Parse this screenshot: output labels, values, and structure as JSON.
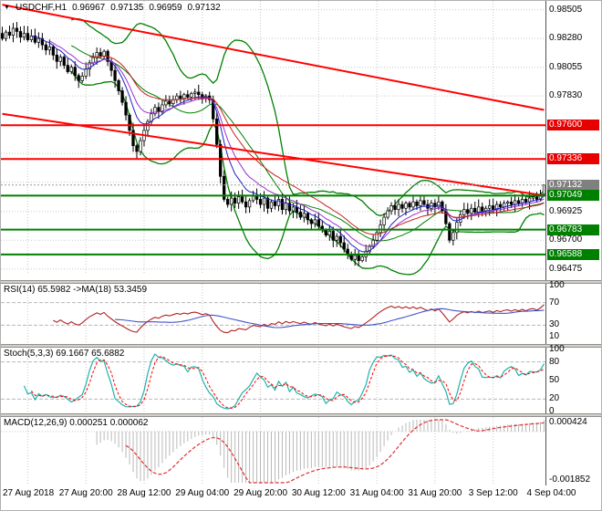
{
  "title_bar": {
    "symbol_period": "USDCHF,H1",
    "open": "0.96967",
    "high": "0.97135",
    "low": "0.96959",
    "close": "0.97132"
  },
  "indicator_labels": {
    "rsi": "RSI(14) 65.5982 ->MA(18) 53.3459",
    "stoch": "Stoch(5,3,3) 69.1667 65.6882",
    "macd": "MACD(12,26,9) 0.000251 0.000062"
  },
  "chart_data": {
    "type": "candlestick",
    "symbol": "USDCHF",
    "timeframe": "H1",
    "ohlc_display": {
      "open": 0.96967,
      "high": 0.97135,
      "low": 0.96959,
      "close": 0.97132
    },
    "x_axis": {
      "labels": [
        "27 Aug 2018",
        "27 Aug 20:00",
        "28 Aug 12:00",
        "29 Aug 04:00",
        "29 Aug 20:00",
        "30 Aug 12:00",
        "31 Aug 04:00",
        "31 Aug 20:00",
        "3 Sep 12:00",
        "4 Sep 04:00"
      ],
      "first_label_bar": 7,
      "bars_per_label": 16
    },
    "y_axis": {
      "min": 0.9643,
      "max": 0.9856,
      "plain_ticks": [
        {
          "t": "0.98505",
          "v": 0.98505
        },
        {
          "t": "0.98280",
          "v": 0.9828
        },
        {
          "t": "0.98055",
          "v": 0.98055
        },
        {
          "t": "0.97830",
          "v": 0.9783
        },
        {
          "t": "0.96925",
          "v": 0.96925
        },
        {
          "t": "0.96700",
          "v": 0.967
        },
        {
          "t": "0.96475",
          "v": 0.96475
        }
      ],
      "grid_values": [
        0.98505,
        0.9828,
        0.98055,
        0.9783,
        0.97605,
        0.9738,
        0.97155,
        0.96925,
        0.967,
        0.96475
      ]
    },
    "price_levels": [
      {
        "t": "0.97600",
        "v": 0.976,
        "kind": "resistance"
      },
      {
        "t": "0.97336",
        "v": 0.97336,
        "kind": "resistance"
      },
      {
        "t": "0.97132",
        "v": 0.97132,
        "kind": "current"
      },
      {
        "t": "0.97049",
        "v": 0.97049,
        "kind": "support"
      },
      {
        "t": "0.96783",
        "v": 0.96783,
        "kind": "support"
      },
      {
        "t": "0.96588",
        "v": 0.96588,
        "kind": "support"
      }
    ],
    "trendlines": [
      {
        "from_bar": 0,
        "from_price": 0.98545,
        "to_bar": 149,
        "to_price": 0.9772
      },
      {
        "from_bar": 0,
        "from_price": 0.9769,
        "to_bar": 149,
        "to_price": 0.9705
      }
    ],
    "candles_close": [
      0.9828,
      0.9833,
      0.98305,
      0.9836,
      0.98335,
      0.9829,
      0.9832,
      0.9827,
      0.983,
      0.9825,
      0.9828,
      0.9823,
      0.9819,
      0.98215,
      0.9815,
      0.981,
      0.98135,
      0.9807,
      0.9802,
      0.98055,
      0.9799,
      0.9795,
      0.97985,
      0.9804,
      0.9809,
      0.9813,
      0.9817,
      0.9814,
      0.9818,
      0.981,
      0.9803,
      0.9795,
      0.9787,
      0.9778,
      0.9768,
      0.9756,
      0.9744,
      0.97395,
      0.9748,
      0.9756,
      0.9763,
      0.9769,
      0.9774,
      0.97705,
      0.9776,
      0.9779,
      0.9777,
      0.978,
      0.9783,
      0.9781,
      0.9784,
      0.9782,
      0.9785,
      0.9786,
      0.9784,
      0.9781,
      0.9783,
      0.978,
      0.9765,
      0.9745,
      0.972,
      0.9702,
      0.9698,
      0.9703,
      0.9699,
      0.9704,
      0.97,
      0.9696,
      0.9701,
      0.9705,
      0.9702,
      0.9698,
      0.9703,
      0.9695,
      0.97,
      0.9697,
      0.9702,
      0.9694,
      0.9699,
      0.9693,
      0.9696,
      0.9692,
      0.9688,
      0.9691,
      0.9686,
      0.9683,
      0.9686,
      0.9681,
      0.9678,
      0.9674,
      0.9677,
      0.967,
      0.9673,
      0.9668,
      0.9663,
      0.9659,
      0.9655,
      0.9658,
      0.9654,
      0.9657,
      0.9661,
      0.9665,
      0.967,
      0.9676,
      0.9682,
      0.9688,
      0.9693,
      0.9697,
      0.9694,
      0.9698,
      0.9695,
      0.9699,
      0.9696,
      0.97,
      0.9697,
      0.9701,
      0.9698,
      0.9695,
      0.9699,
      0.9696,
      0.97,
      0.9693,
      0.9683,
      0.967,
      0.9676,
      0.9684,
      0.969,
      0.9694,
      0.9691,
      0.9695,
      0.9692,
      0.9696,
      0.9693,
      0.9695,
      0.9697,
      0.9694,
      0.9698,
      0.9696,
      0.9699,
      0.97,
      0.9698,
      0.9701,
      0.9699,
      0.9702,
      0.97,
      0.9703,
      0.9704,
      0.9702,
      0.9706,
      0.97132
    ],
    "indicators": {
      "bollinger": {
        "period": 20,
        "dev": 2
      },
      "mas": [
        {
          "period": 8,
          "color": "#2020c8"
        },
        {
          "period": 13,
          "color": "#9932cc"
        },
        {
          "period": 24,
          "color": "#c82020"
        }
      ],
      "rsi": {
        "period": 14,
        "ma": 18,
        "value": "65.5982",
        "ma_value": "53.3459",
        "axis": [
          {
            "t": "100",
            "v": 100
          },
          {
            "t": "70",
            "v": 70
          },
          {
            "t": "30",
            "v": 30
          },
          {
            "t": "10",
            "v": 10
          }
        ],
        "levels": [
          70,
          30
        ]
      },
      "stoch": {
        "k": 5,
        "d": 3,
        "slowing": 3,
        "value": "69.1667",
        "signal_value": "65.6882",
        "axis": [
          {
            "t": "100",
            "v": 100
          },
          {
            "t": "80",
            "v": 80
          },
          {
            "t": "50",
            "v": 50
          },
          {
            "t": "20",
            "v": 20
          },
          {
            "t": "0",
            "v": 0
          }
        ],
        "levels": [
          80,
          20
        ]
      },
      "macd": {
        "fast": 12,
        "slow": 26,
        "signal": 9,
        "value": "0.000251",
        "signal_value": "0.000062",
        "scale_max": 0.000424,
        "scale_min": -0.001852,
        "axis": [
          {
            "t": "0.000424",
            "v": 0.000424
          },
          {
            "t": "-0.001852",
            "v": -0.001852
          }
        ]
      }
    },
    "colors": {
      "bull": "#ffffff",
      "bear": "#000000",
      "outline": "#000000",
      "bollinger": "#008000",
      "trend": "#ff0000",
      "res_line": "#ff0000",
      "sup_line": "#008000",
      "grid": "#c8c8c8",
      "rsi": "#b22222",
      "rsi_ma": "#4055c8",
      "stoch_k": "#20b2aa",
      "stoch_d": "#ff0000",
      "macd_hist": "#b8b8b8",
      "macd_sig": "#e03030",
      "label_red_bg": "#e60000",
      "label_green_bg": "#008000",
      "label_cur_bg": "#808080"
    }
  }
}
